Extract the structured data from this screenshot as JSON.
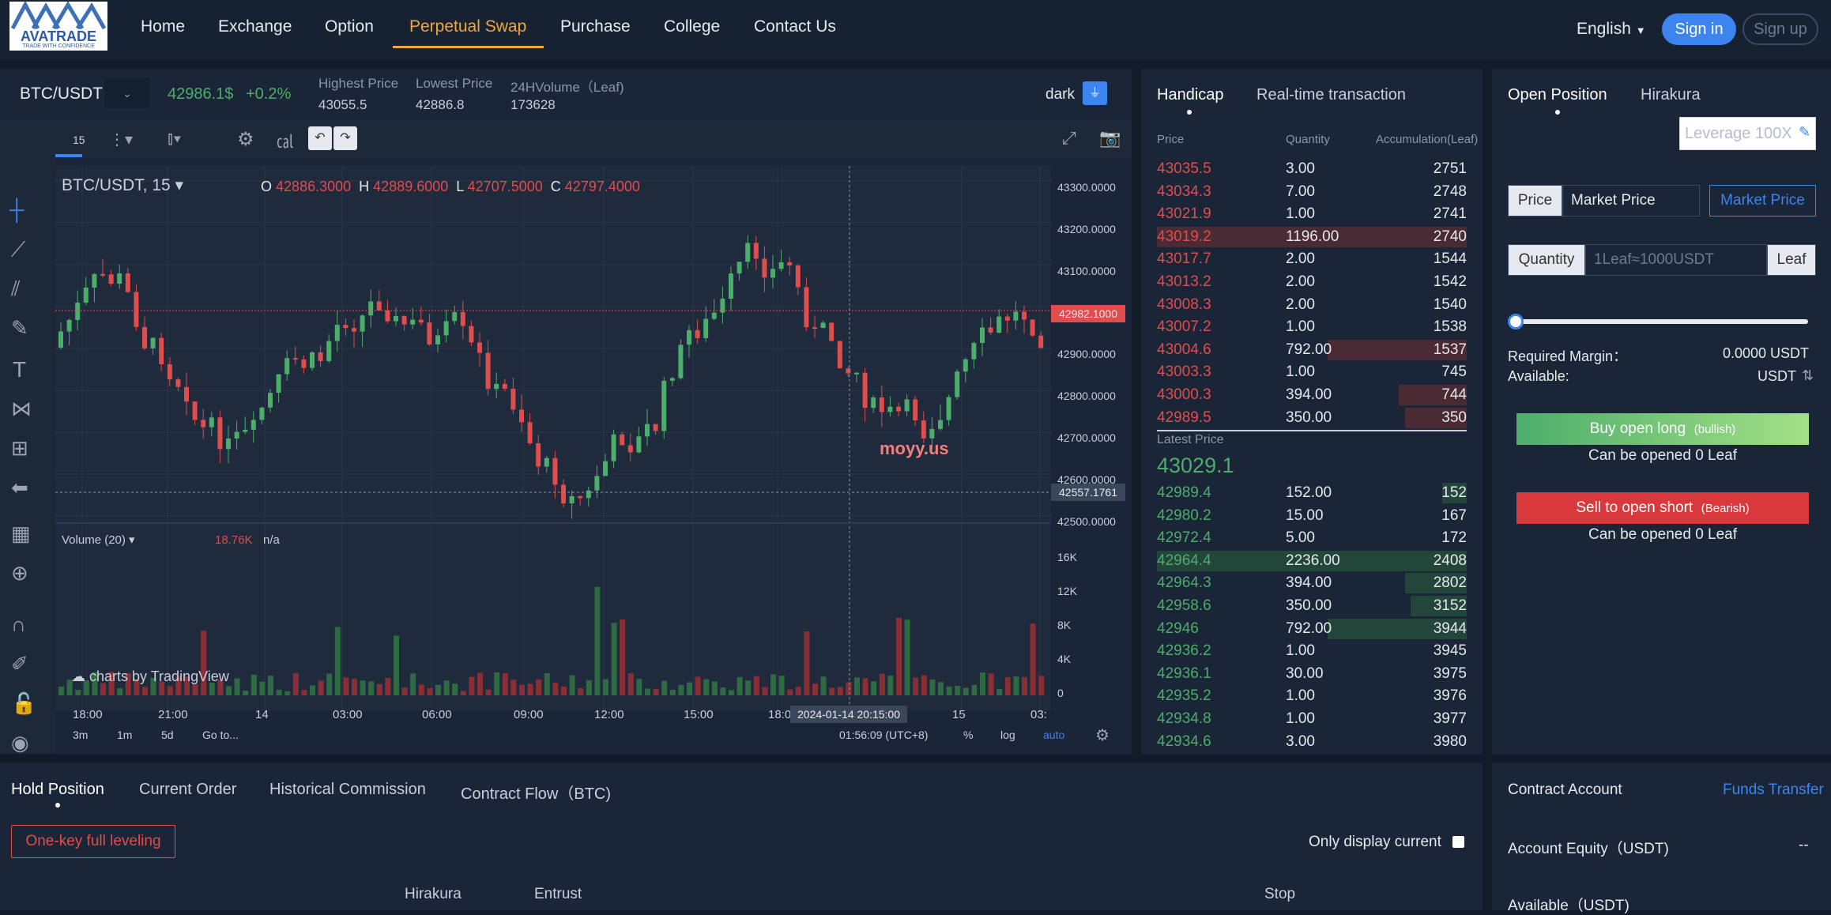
{
  "nav": {
    "logo_text": "AVATRADE",
    "logo_tagline": "TRADE WITH CONFIDENCE",
    "links": [
      "Home",
      "Exchange",
      "Option",
      "Perpetual Swap",
      "Purchase",
      "College",
      "Contact Us"
    ],
    "language": "English",
    "sign_in": "Sign in",
    "sign_up": "Sign up"
  },
  "ticker": {
    "pair": "BTC/USDT",
    "price": "42986.1$",
    "change": "+0.2%",
    "high_label": "Highest Price",
    "high": "43055.5",
    "low_label": "Lowest Price",
    "low": "42886.8",
    "vol_label": "24HVolume（Leaf)",
    "vol": "173628",
    "theme": "dark"
  },
  "chart": {
    "interval": "15",
    "symbol_title": "BTC/USDT, 15",
    "open": "O",
    "open_val": "42886.3000",
    "high": "H",
    "high_val": "42889.6000",
    "low": "L",
    "low_val": "42707.5000",
    "close": "C",
    "close_val": "42797.4000",
    "price_axis": [
      "43300.0000",
      "43200.0000",
      "43100.0000",
      "42900.0000",
      "42800.0000",
      "42700.0000",
      "42600.0000",
      "42500.0000"
    ],
    "current_price_tag": "42982.1000",
    "cursor_price_tag": "42557.1761",
    "watermark": "moyy.us",
    "volume_label": "Volume (20)",
    "volume_val": "18.76K",
    "volume_na": "n/a",
    "volume_axis": [
      "16K",
      "12K",
      "8K",
      "4K",
      "0"
    ],
    "attribution": "charts by TradingView",
    "time_axis": [
      "18:00",
      "21:00",
      "14",
      "03:00",
      "06:00",
      "09:00",
      "12:00",
      "15:00",
      "18:0",
      "15",
      "03:"
    ],
    "cursor_time": "2024-01-14 20:15:00",
    "ranges": [
      "3m",
      "1m",
      "5d"
    ],
    "goto": "Go to...",
    "clock": "01:56:09 (UTC+8)",
    "pct": "%",
    "log": "log",
    "auto": "auto"
  },
  "orderbook": {
    "tabs": [
      "Handicap",
      "Real-time transaction"
    ],
    "headers": [
      "Price",
      "Quantity",
      "Accumulation(Leaf)"
    ],
    "asks": [
      [
        "43035.5",
        "3.00",
        "2751",
        0
      ],
      [
        "43034.3",
        "7.00",
        "2748",
        0
      ],
      [
        "43021.9",
        "1.00",
        "2741",
        0
      ],
      [
        "43019.2",
        "1196.00",
        "2740",
        1
      ],
      [
        "43017.7",
        "2.00",
        "1544",
        0
      ],
      [
        "43013.2",
        "2.00",
        "1542",
        0
      ],
      [
        "43008.3",
        "2.00",
        "1540",
        0
      ],
      [
        "43007.2",
        "1.00",
        "1538",
        0
      ],
      [
        "43004.6",
        "792.00",
        "1537",
        0.45
      ],
      [
        "43003.3",
        "1.00",
        "745",
        0
      ],
      [
        "43000.3",
        "394.00",
        "744",
        0.22
      ],
      [
        "42989.5",
        "350.00",
        "350",
        0.2
      ]
    ],
    "latest_label": "Latest Price",
    "latest": "43029.1",
    "bids": [
      [
        "42989.4",
        "152.00",
        "152",
        0.08
      ],
      [
        "42980.2",
        "15.00",
        "167",
        0
      ],
      [
        "42972.4",
        "5.00",
        "172",
        0
      ],
      [
        "42964.4",
        "2236.00",
        "2408",
        1
      ],
      [
        "42964.3",
        "394.00",
        "2802",
        0.2
      ],
      [
        "42958.6",
        "350.00",
        "3152",
        0.18
      ],
      [
        "42946",
        "792.00",
        "3944",
        0.45
      ],
      [
        "42936.2",
        "1.00",
        "3945",
        0
      ],
      [
        "42936.1",
        "30.00",
        "3975",
        0
      ],
      [
        "42935.2",
        "1.00",
        "3976",
        0
      ],
      [
        "42934.8",
        "1.00",
        "3977",
        0
      ],
      [
        "42934.6",
        "3.00",
        "3980",
        0
      ]
    ]
  },
  "order": {
    "tabs": [
      "Open Position",
      "Hirakura"
    ],
    "leverage_placeholder": "Leverage 100X",
    "price_label": "Price",
    "price_value": "Market Price",
    "market_button": "Market Price",
    "qty_label": "Quantity",
    "qty_placeholder": "1Leaf≈1000USDT",
    "qty_unit": "Leaf",
    "slider_value": 0,
    "required_label": "Required Margin：",
    "required_value": "0.0000 USDT",
    "available_label": "Available:",
    "available_value": "USDT",
    "buy_label": "Buy open long",
    "buy_sub": "(bullish)",
    "buy_note": "Can be opened 0 Leaf",
    "sell_label": "Sell to open short",
    "sell_sub": "(Bearish)",
    "sell_note": "Can be opened 0 Leaf"
  },
  "positions": {
    "tabs": [
      "Hold Position",
      "Current Order",
      "Historical Commission",
      "Contract Flow（BTC)"
    ],
    "one_key": "One-key full leveling",
    "only_current": "Only display current",
    "columns": [
      "Hirakura",
      "Entrust",
      "Stop"
    ]
  },
  "account": {
    "title": "Contract Account",
    "transfer": "Funds Transfer",
    "equity_label": "Account Equity（USDT)",
    "equity_value": "--",
    "available_label": "Available（USDT)"
  },
  "colors": {
    "up": "#4cae6a",
    "down": "#e04d4d",
    "accent": "#f0a640",
    "blue": "#3c84f0"
  }
}
